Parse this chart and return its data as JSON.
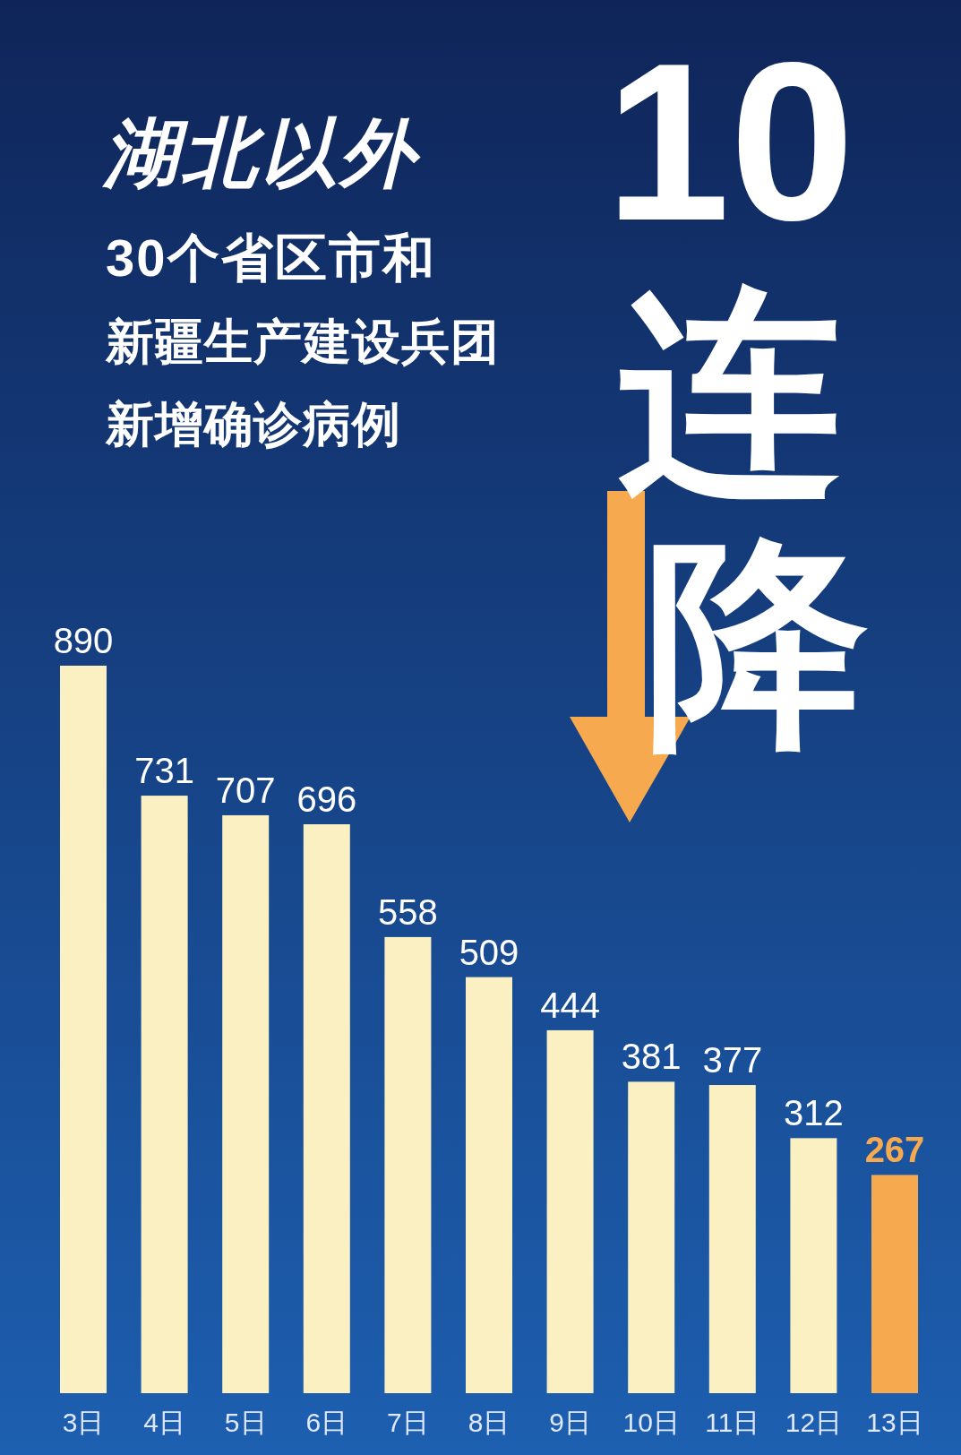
{
  "chart_data": {
    "type": "bar",
    "title": "湖北以外",
    "subtitle": "30个省区市和",
    "annotations": [
      "新疆生产建设兵团",
      "新增确诊病例",
      "10连降"
    ],
    "categories": [
      "3日",
      "4日",
      "5日",
      "6日",
      "7日",
      "8日",
      "9日",
      "10日",
      "11日",
      "12日",
      "13日"
    ],
    "values": [
      890,
      731,
      707,
      696,
      558,
      509,
      444,
      381,
      377,
      312,
      267
    ],
    "colors": [
      "#fbf0c2",
      "#fbf0c2",
      "#fbf0c2",
      "#fbf0c2",
      "#fbf0c2",
      "#fbf0c2",
      "#fbf0c2",
      "#fbf0c2",
      "#fbf0c2",
      "#fbf0c2",
      "#f6a94f"
    ],
    "data_labels": true
  }
}
